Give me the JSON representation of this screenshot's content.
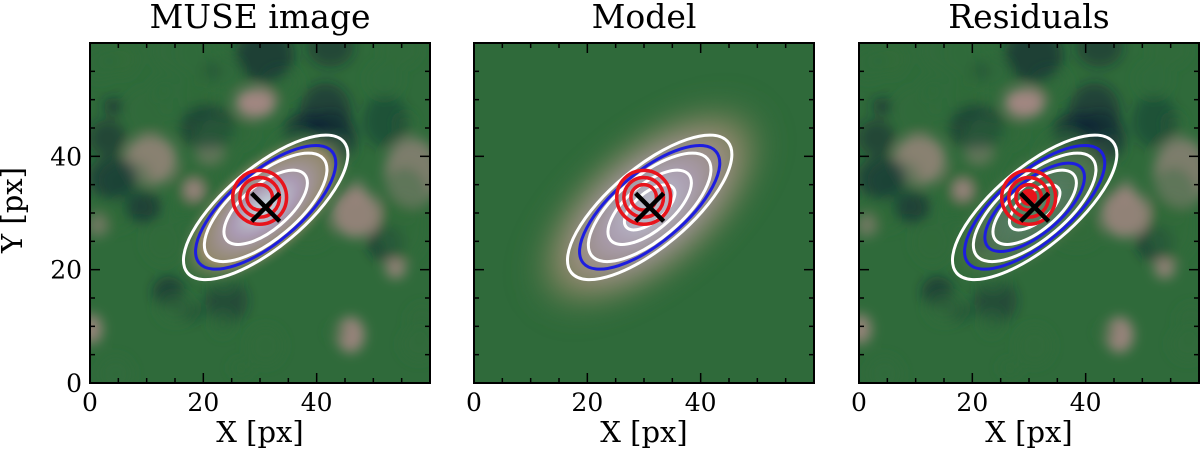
{
  "figure": {
    "panel_titles": [
      "MUSE image",
      "Model",
      "Residuals"
    ]
  },
  "chart_data": {
    "type": "heatmap",
    "panels": [
      {
        "title": "MUSE image",
        "xlabel": "X [px]",
        "ylabel": "Y [px]",
        "show_yticklabels": true,
        "contours_white": [
          1.0,
          0.74,
          0.5
        ],
        "contours_blue": [
          0.85
        ],
        "residual_peak": false,
        "background": "noise"
      },
      {
        "title": "Model",
        "xlabel": "X [px]",
        "ylabel": "",
        "show_yticklabels": false,
        "contours_white": [
          1.0,
          0.74,
          0.5,
          0.3
        ],
        "contours_blue": [
          0.85
        ],
        "residual_peak": false,
        "background": "smooth"
      },
      {
        "title": "Residuals",
        "xlabel": "X [px]",
        "ylabel": "",
        "show_yticklabels": false,
        "contours_white": [
          1.0,
          0.74,
          0.5,
          0.3
        ],
        "contours_blue": [
          0.85,
          0.6
        ],
        "residual_peak": true,
        "background": "noise"
      }
    ],
    "xlim": [
      0,
      60
    ],
    "ylim": [
      0,
      60
    ],
    "xticks": [
      0,
      20,
      40
    ],
    "yticks": [
      0,
      20,
      40
    ],
    "xtick_labels": [
      "0",
      "20",
      "40"
    ],
    "ytick_labels": [
      "0",
      "20",
      "40"
    ],
    "galaxy": {
      "center_x": 31,
      "center_y": 31,
      "semi_major": 18,
      "semi_minor": 7,
      "angle_deg": 40
    },
    "point_source": {
      "x": 31,
      "y": 31,
      "marker": "x",
      "ring_radii": [
        1.8,
        2.8,
        3.8
      ]
    },
    "colors": {
      "background": "#2f6a3a",
      "dark": "#0f2434",
      "pink": "#c9909a",
      "galaxy_core": "#d8e6f2",
      "galaxy_mid": "#b8a0c0",
      "white_contour": "#ffffff",
      "blue_contour": "#1d1de0",
      "red_contour": "#e8141c",
      "marker": "#000000"
    }
  }
}
